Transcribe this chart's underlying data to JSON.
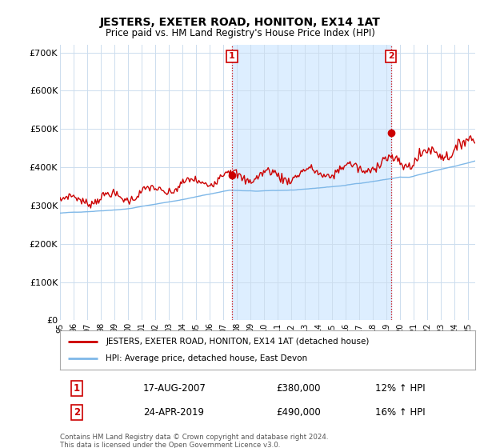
{
  "title": "JESTERS, EXETER ROAD, HONITON, EX14 1AT",
  "subtitle": "Price paid vs. HM Land Registry's House Price Index (HPI)",
  "ylim": [
    0,
    720000
  ],
  "yticks": [
    0,
    100000,
    200000,
    300000,
    400000,
    500000,
    600000,
    700000
  ],
  "ytick_labels": [
    "£0",
    "£100K",
    "£200K",
    "£300K",
    "£400K",
    "£500K",
    "£600K",
    "£700K"
  ],
  "hpi_color": "#7fb8e8",
  "property_color": "#cc0000",
  "shade_color": "#ddeeff",
  "marker1_year": 2007.63,
  "marker1_value": 380000,
  "marker1_label": "1",
  "marker2_year": 2019.32,
  "marker2_value": 490000,
  "marker2_label": "2",
  "legend_property": "JESTERS, EXETER ROAD, HONITON, EX14 1AT (detached house)",
  "legend_hpi": "HPI: Average price, detached house, East Devon",
  "annotation1_num": "1",
  "annotation1_date": "17-AUG-2007",
  "annotation1_price": "£380,000",
  "annotation1_hpi": "12% ↑ HPI",
  "annotation2_num": "2",
  "annotation2_date": "24-APR-2019",
  "annotation2_price": "£490,000",
  "annotation2_hpi": "16% ↑ HPI",
  "footer": "Contains HM Land Registry data © Crown copyright and database right 2024.\nThis data is licensed under the Open Government Licence v3.0.",
  "background_color": "#ffffff",
  "grid_color": "#ccddee",
  "xmin": 1995,
  "xmax": 2025.5
}
